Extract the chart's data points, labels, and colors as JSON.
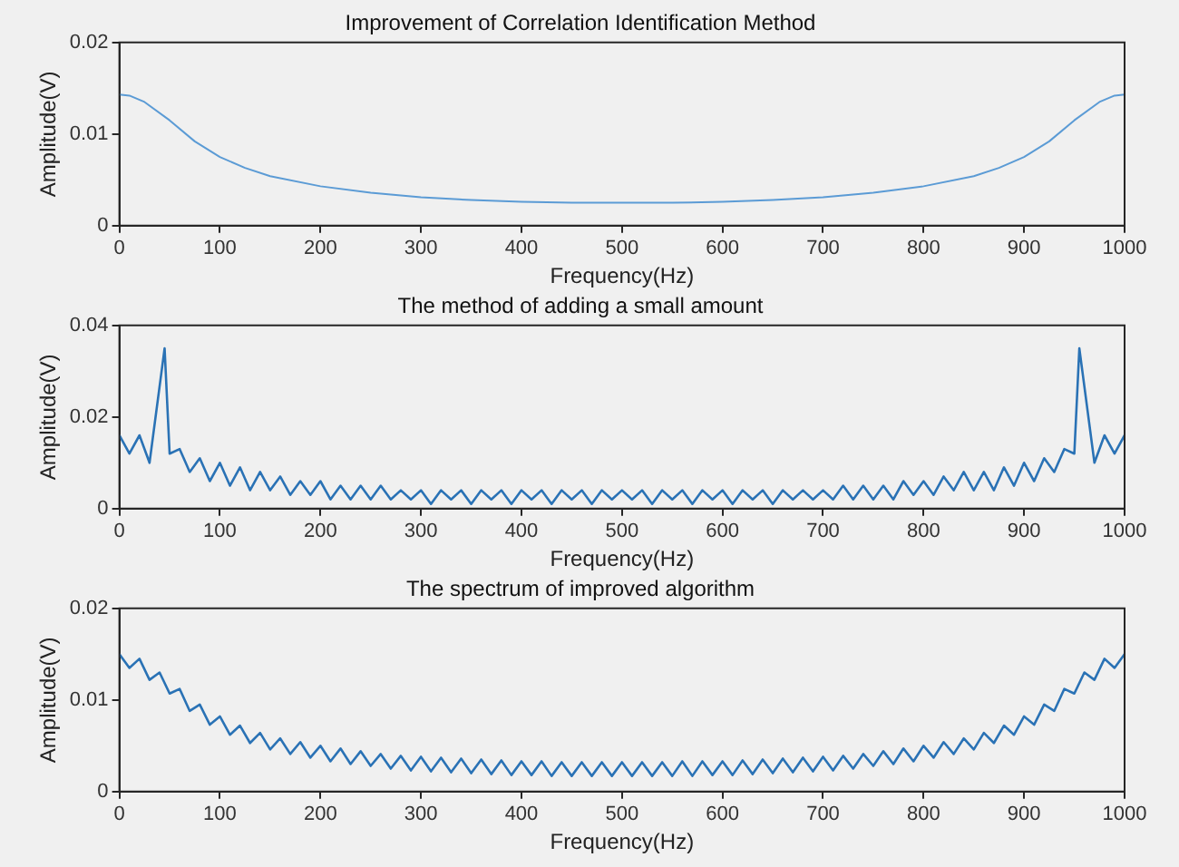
{
  "chart_data": [
    {
      "type": "line",
      "title": "Improvement of Correlation Identification Method",
      "xlabel": "Frequency(Hz)",
      "ylabel": "Amplitude(V)",
      "xlim": [
        0,
        1000
      ],
      "xticks": [
        0,
        100,
        200,
        300,
        400,
        500,
        600,
        700,
        800,
        900,
        1000
      ],
      "ylim": [
        0,
        0.02
      ],
      "yticks": [
        0,
        0.01,
        0.02
      ],
      "grid": false,
      "legend": false,
      "marker": "none",
      "line_style": "solid",
      "series": [
        {
          "color": "#5b9bd5",
          "x": [
            0,
            10,
            25,
            50,
            75,
            100,
            125,
            150,
            200,
            250,
            300,
            350,
            400,
            450,
            500,
            550,
            600,
            650,
            700,
            750,
            800,
            850,
            875,
            900,
            925,
            950,
            975,
            990,
            1000
          ],
          "values": [
            0.0143,
            0.0142,
            0.0135,
            0.0115,
            0.0092,
            0.0075,
            0.0063,
            0.0054,
            0.0043,
            0.0036,
            0.0031,
            0.0028,
            0.0026,
            0.0025,
            0.0025,
            0.0025,
            0.0026,
            0.0028,
            0.0031,
            0.0036,
            0.0043,
            0.0054,
            0.0063,
            0.0075,
            0.0092,
            0.0115,
            0.0135,
            0.0142,
            0.0143
          ]
        }
      ]
    },
    {
      "type": "line",
      "title": "The method of adding a small amount",
      "xlabel": "Frequency(Hz)",
      "ylabel": "Amplitude(V)",
      "xlim": [
        0,
        1000
      ],
      "xticks": [
        0,
        100,
        200,
        300,
        400,
        500,
        600,
        700,
        800,
        900,
        1000
      ],
      "ylim": [
        0,
        0.04
      ],
      "yticks": [
        0,
        0.02,
        0.04
      ],
      "grid": false,
      "legend": false,
      "marker": "none",
      "line_style": "solid",
      "series": [
        {
          "color": "#2a72b5",
          "x": [
            0,
            10,
            20,
            30,
            45,
            50,
            60,
            70,
            80,
            90,
            100,
            110,
            120,
            130,
            140,
            150,
            160,
            170,
            180,
            190,
            200,
            210,
            220,
            230,
            240,
            250,
            260,
            270,
            280,
            290,
            300,
            310,
            320,
            330,
            340,
            350,
            360,
            370,
            380,
            390,
            400,
            410,
            420,
            430,
            440,
            450,
            460,
            470,
            480,
            490,
            500,
            510,
            520,
            530,
            540,
            550,
            560,
            570,
            580,
            590,
            600,
            610,
            620,
            630,
            640,
            650,
            660,
            670,
            680,
            690,
            700,
            710,
            720,
            730,
            740,
            750,
            760,
            770,
            780,
            790,
            800,
            810,
            820,
            830,
            840,
            850,
            860,
            870,
            880,
            890,
            900,
            910,
            920,
            930,
            940,
            950,
            955,
            970,
            980,
            990,
            1000
          ],
          "values": [
            0.016,
            0.012,
            0.016,
            0.01,
            0.035,
            0.012,
            0.013,
            0.008,
            0.011,
            0.006,
            0.01,
            0.005,
            0.009,
            0.004,
            0.008,
            0.004,
            0.007,
            0.003,
            0.006,
            0.003,
            0.006,
            0.002,
            0.005,
            0.002,
            0.005,
            0.002,
            0.005,
            0.002,
            0.004,
            0.002,
            0.004,
            0.001,
            0.004,
            0.002,
            0.004,
            0.001,
            0.004,
            0.002,
            0.004,
            0.001,
            0.004,
            0.002,
            0.004,
            0.001,
            0.004,
            0.002,
            0.004,
            0.001,
            0.004,
            0.002,
            0.004,
            0.002,
            0.004,
            0.001,
            0.004,
            0.002,
            0.004,
            0.001,
            0.004,
            0.002,
            0.004,
            0.001,
            0.004,
            0.002,
            0.004,
            0.001,
            0.004,
            0.002,
            0.004,
            0.002,
            0.004,
            0.002,
            0.005,
            0.002,
            0.005,
            0.002,
            0.005,
            0.002,
            0.006,
            0.003,
            0.006,
            0.003,
            0.007,
            0.004,
            0.008,
            0.004,
            0.008,
            0.004,
            0.009,
            0.005,
            0.01,
            0.006,
            0.011,
            0.008,
            0.013,
            0.012,
            0.035,
            0.01,
            0.016,
            0.012,
            0.016
          ]
        }
      ]
    },
    {
      "type": "line",
      "title": "The spectrum of improved algorithm",
      "xlabel": "Frequency(Hz)",
      "ylabel": "Amplitude(V)",
      "xlim": [
        0,
        1000
      ],
      "xticks": [
        0,
        100,
        200,
        300,
        400,
        500,
        600,
        700,
        800,
        900,
        1000
      ],
      "ylim": [
        0,
        0.02
      ],
      "yticks": [
        0,
        0.01,
        0.02
      ],
      "grid": false,
      "legend": false,
      "marker": "none",
      "line_style": "solid",
      "series": [
        {
          "color": "#2a72b5",
          "x": [
            0,
            10,
            20,
            30,
            40,
            50,
            60,
            70,
            80,
            90,
            100,
            110,
            120,
            130,
            140,
            150,
            160,
            170,
            180,
            190,
            200,
            210,
            220,
            230,
            240,
            250,
            260,
            270,
            280,
            290,
            300,
            310,
            320,
            330,
            340,
            350,
            360,
            370,
            380,
            390,
            400,
            410,
            420,
            430,
            440,
            450,
            460,
            470,
            480,
            490,
            500,
            510,
            520,
            530,
            540,
            550,
            560,
            570,
            580,
            590,
            600,
            610,
            620,
            630,
            640,
            650,
            660,
            670,
            680,
            690,
            700,
            710,
            720,
            730,
            740,
            750,
            760,
            770,
            780,
            790,
            800,
            810,
            820,
            830,
            840,
            850,
            860,
            870,
            880,
            890,
            900,
            910,
            920,
            930,
            940,
            950,
            960,
            970,
            980,
            990,
            1000
          ],
          "values": [
            0.015,
            0.0135,
            0.0145,
            0.0122,
            0.013,
            0.0107,
            0.0112,
            0.0088,
            0.0095,
            0.0073,
            0.0082,
            0.0062,
            0.0072,
            0.0053,
            0.0064,
            0.0046,
            0.0058,
            0.0041,
            0.0054,
            0.0037,
            0.005,
            0.0033,
            0.0047,
            0.003,
            0.0044,
            0.0028,
            0.0041,
            0.0025,
            0.0039,
            0.0023,
            0.0038,
            0.0022,
            0.0037,
            0.0021,
            0.0036,
            0.002,
            0.0035,
            0.0019,
            0.0034,
            0.0018,
            0.0033,
            0.0018,
            0.0033,
            0.0017,
            0.0032,
            0.0017,
            0.0032,
            0.0017,
            0.0032,
            0.0017,
            0.0032,
            0.0017,
            0.0032,
            0.0017,
            0.0032,
            0.0017,
            0.0033,
            0.0017,
            0.0033,
            0.0018,
            0.0033,
            0.0018,
            0.0034,
            0.0019,
            0.0035,
            0.002,
            0.0036,
            0.0021,
            0.0037,
            0.0022,
            0.0038,
            0.0023,
            0.0039,
            0.0025,
            0.0041,
            0.0028,
            0.0044,
            0.003,
            0.0047,
            0.0033,
            0.005,
            0.0037,
            0.0054,
            0.0041,
            0.0058,
            0.0046,
            0.0064,
            0.0053,
            0.0072,
            0.0062,
            0.0082,
            0.0073,
            0.0095,
            0.0088,
            0.0112,
            0.0107,
            0.013,
            0.0122,
            0.0145,
            0.0135,
            0.015
          ]
        }
      ]
    }
  ]
}
